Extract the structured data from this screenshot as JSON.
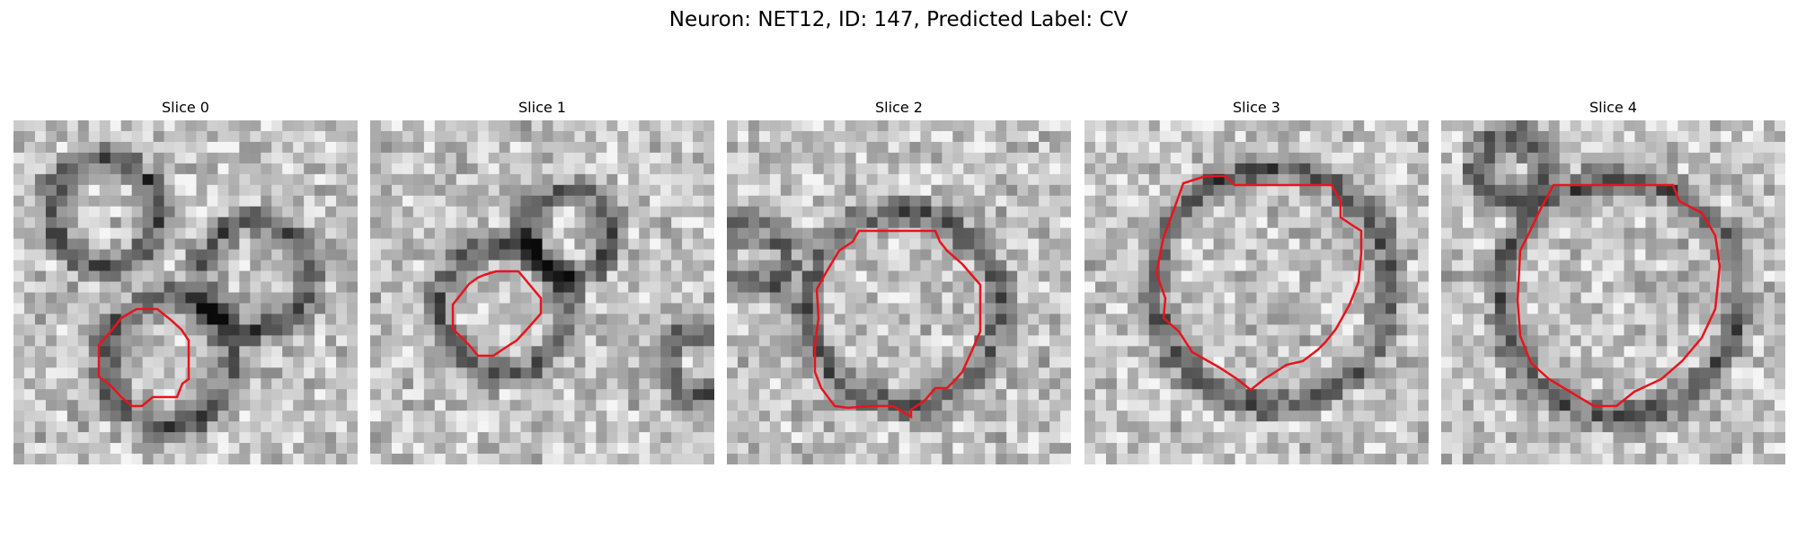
{
  "figure": {
    "title": "Neuron: NET12, ID: 147, Predicted Label: CV"
  },
  "panels": [
    {
      "title": "Slice 0",
      "outline_color": "#e8141c"
    },
    {
      "title": "Slice 1",
      "outline_color": "#e8141c"
    },
    {
      "title": "Slice 2",
      "outline_color": "#e8141c"
    },
    {
      "title": "Slice 3",
      "outline_color": "#e8141c"
    },
    {
      "title": "Slice 4",
      "outline_color": "#e8141c"
    }
  ]
}
